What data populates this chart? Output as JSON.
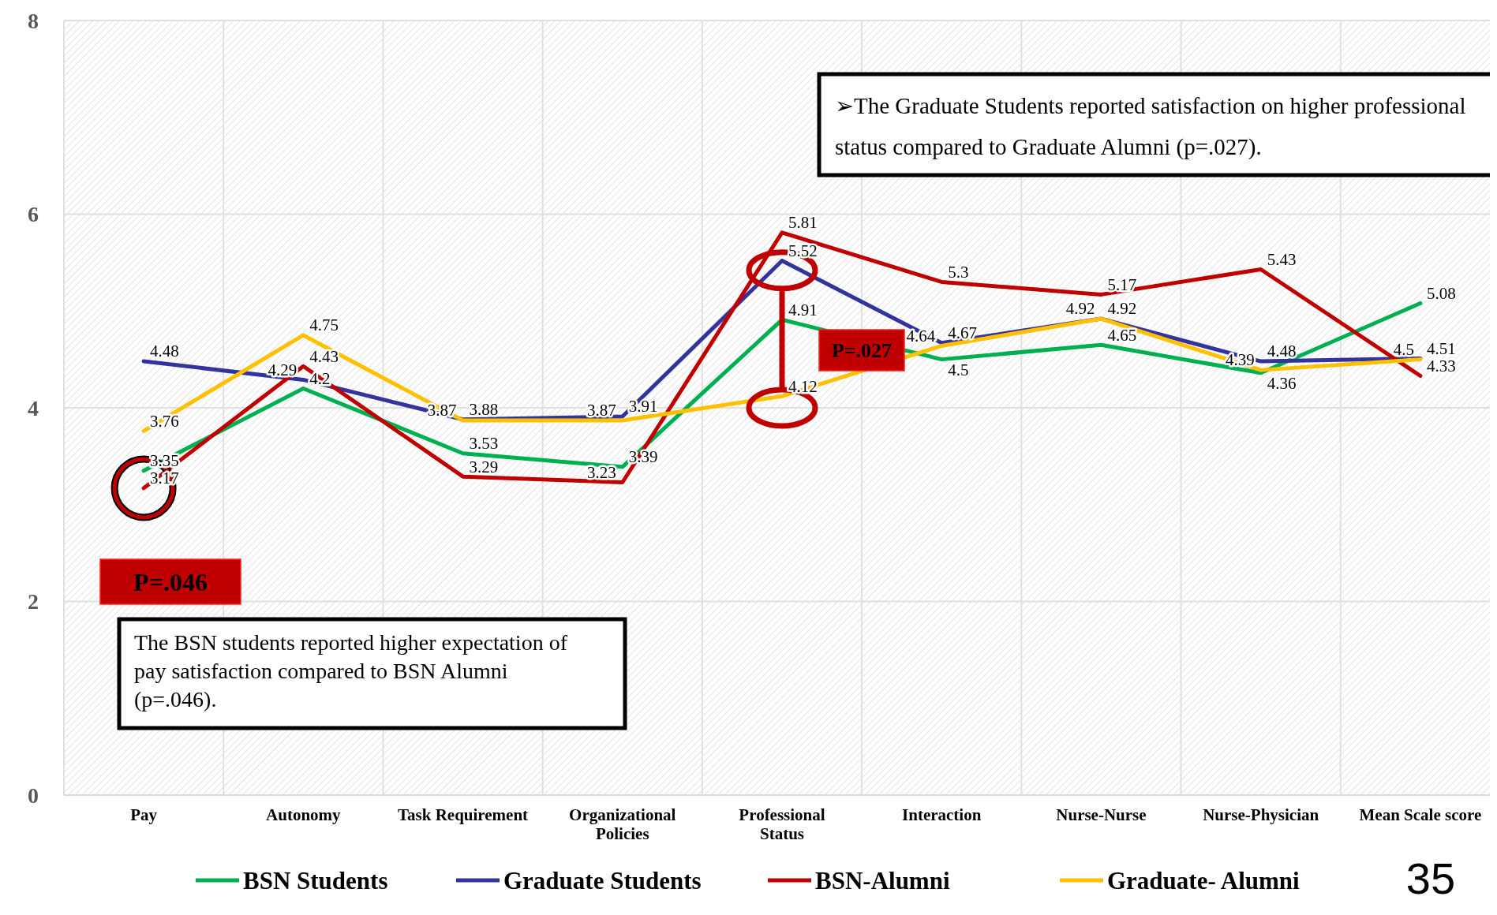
{
  "chart_data": {
    "type": "line",
    "categories": [
      "Pay",
      "Autonomy",
      "Task Requirement",
      "Organizational Policies",
      "Professional Status",
      "Interaction",
      "Nurse-Nurse",
      "Nurse-Physician",
      "Mean Scale score"
    ],
    "series": [
      {
        "name": "BSN Students",
        "color": "#00b050",
        "values": [
          3.35,
          4.2,
          3.53,
          3.39,
          4.91,
          4.5,
          4.65,
          4.36,
          5.08
        ]
      },
      {
        "name": "Graduate Students",
        "color": "#3333a0",
        "values": [
          4.48,
          4.29,
          3.88,
          3.91,
          5.52,
          4.67,
          4.92,
          4.48,
          4.51
        ]
      },
      {
        "name": "BSN-Alumni",
        "color": "#c00000",
        "values": [
          3.17,
          4.43,
          3.29,
          3.23,
          5.81,
          5.3,
          5.17,
          5.43,
          4.33
        ]
      },
      {
        "name": "Graduate- Alumni",
        "color": "#ffc000",
        "values": [
          3.76,
          4.75,
          3.87,
          3.87,
          4.12,
          4.64,
          4.92,
          4.39,
          4.5
        ]
      }
    ],
    "ylim": [
      0,
      8
    ],
    "yticks": [
      0,
      2,
      4,
      6,
      8
    ],
    "grid": true,
    "legend": "bottom",
    "marker": "none",
    "line_style": "solid",
    "data_labels": true,
    "annotations": [
      "➢The Graduate Students reported satisfaction on higher professional status compared to Graduate Alumni (p=.027).",
      "The BSN students reported higher expectation of pay satisfaction compared to BSN Alumni (p=.046).",
      "P=.046",
      "P=.027",
      "35"
    ]
  }
}
